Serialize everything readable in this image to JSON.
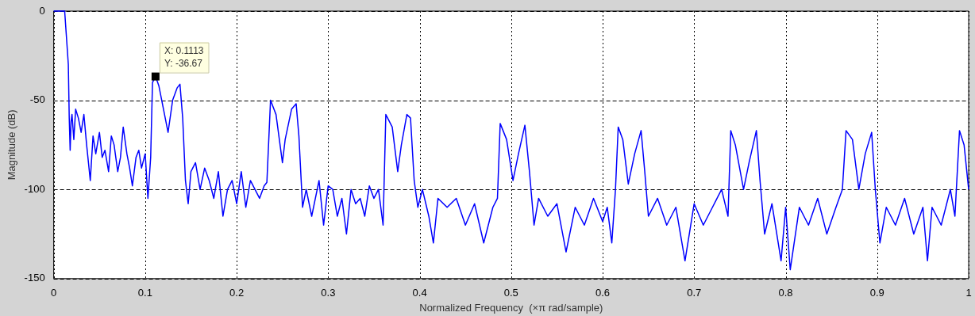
{
  "chart_data": {
    "type": "line",
    "xlabel": "Normalized Frequency  (×π rad/sample)",
    "ylabel": "Magnitude (dB)",
    "xlim": [
      0,
      1
    ],
    "ylim": [
      -150,
      0
    ],
    "xticks": [
      0,
      0.1,
      0.2,
      0.3,
      0.4,
      0.5,
      0.6,
      0.7,
      0.8,
      0.9,
      1
    ],
    "yticks": [
      -150,
      -100,
      -50,
      0
    ],
    "grid": true,
    "marker": "none",
    "line_style": "solid",
    "x": [
      0,
      0.012,
      0.016,
      0.017,
      0.018,
      0.019,
      0.02,
      0.022,
      0.024,
      0.027,
      0.03,
      0.033,
      0.036,
      0.04,
      0.043,
      0.046,
      0.05,
      0.053,
      0.056,
      0.06,
      0.063,
      0.066,
      0.07,
      0.073,
      0.076,
      0.08,
      0.083,
      0.086,
      0.09,
      0.093,
      0.096,
      0.1,
      0.103,
      0.106,
      0.108,
      0.1113,
      0.115,
      0.12,
      0.125,
      0.13,
      0.135,
      0.138,
      0.141,
      0.144,
      0.147,
      0.15,
      0.155,
      0.16,
      0.165,
      0.17,
      0.175,
      0.18,
      0.185,
      0.19,
      0.195,
      0.2,
      0.205,
      0.21,
      0.215,
      0.22,
      0.225,
      0.23,
      0.233,
      0.237,
      0.243,
      0.25,
      0.253,
      0.26,
      0.265,
      0.268,
      0.272,
      0.276,
      0.282,
      0.29,
      0.295,
      0.3,
      0.305,
      0.31,
      0.315,
      0.32,
      0.325,
      0.33,
      0.335,
      0.34,
      0.345,
      0.35,
      0.355,
      0.36,
      0.363,
      0.37,
      0.376,
      0.38,
      0.386,
      0.39,
      0.394,
      0.398,
      0.403,
      0.41,
      0.415,
      0.42,
      0.43,
      0.44,
      0.45,
      0.46,
      0.47,
      0.48,
      0.485,
      0.488,
      0.495,
      0.502,
      0.508,
      0.515,
      0.52,
      0.525,
      0.53,
      0.54,
      0.55,
      0.56,
      0.57,
      0.58,
      0.59,
      0.6,
      0.605,
      0.61,
      0.614,
      0.617,
      0.622,
      0.628,
      0.635,
      0.642,
      0.646,
      0.65,
      0.66,
      0.67,
      0.68,
      0.69,
      0.7,
      0.71,
      0.72,
      0.73,
      0.737,
      0.74,
      0.745,
      0.754,
      0.76,
      0.768,
      0.772,
      0.777,
      0.785,
      0.795,
      0.8,
      0.805,
      0.815,
      0.825,
      0.835,
      0.845,
      0.855,
      0.862,
      0.866,
      0.873,
      0.88,
      0.887,
      0.894,
      0.898,
      0.903,
      0.91,
      0.92,
      0.93,
      0.94,
      0.95,
      0.955,
      0.96,
      0.97,
      0.98,
      0.985,
      0.99,
      0.995,
      1
    ],
    "series": [
      {
        "color": "#0000ff",
        "values": [
          0,
          0,
          -30,
          -60,
          -78,
          -62,
          -58,
          -72,
          -55,
          -60,
          -68,
          -58,
          -75,
          -95,
          -70,
          -80,
          -68,
          -82,
          -78,
          -90,
          -70,
          -75,
          -90,
          -82,
          -65,
          -80,
          -88,
          -98,
          -82,
          -78,
          -88,
          -80,
          -105,
          -82,
          -40,
          -36.67,
          -42,
          -55,
          -68,
          -50,
          -43,
          -41,
          -60,
          -95,
          -108,
          -90,
          -85,
          -100,
          -88,
          -95,
          -105,
          -90,
          -115,
          -100,
          -95,
          -108,
          -90,
          -110,
          -95,
          -100,
          -105,
          -98,
          -96,
          -50,
          -58,
          -85,
          -72,
          -55,
          -52,
          -70,
          -110,
          -100,
          -115,
          -95,
          -120,
          -98,
          -100,
          -115,
          -105,
          -125,
          -100,
          -108,
          -105,
          -115,
          -98,
          -105,
          -100,
          -120,
          -58,
          -65,
          -90,
          -75,
          -58,
          -60,
          -95,
          -110,
          -100,
          -115,
          -130,
          -105,
          -110,
          -105,
          -120,
          -108,
          -130,
          -110,
          -105,
          -63,
          -72,
          -95,
          -80,
          -64,
          -90,
          -120,
          -105,
          -115,
          -108,
          -135,
          -110,
          -120,
          -105,
          -118,
          -110,
          -130,
          -100,
          -65,
          -72,
          -97,
          -80,
          -67,
          -90,
          -115,
          -105,
          -120,
          -110,
          -140,
          -108,
          -120,
          -110,
          -100,
          -115,
          -67,
          -75,
          -100,
          -85,
          -67,
          -95,
          -125,
          -108,
          -140,
          -110,
          -145,
          -110,
          -120,
          -105,
          -125,
          -110,
          -100,
          -67,
          -72,
          -100,
          -80,
          -68,
          -100,
          -130,
          -110,
          -120,
          -105,
          -125,
          -110,
          -140,
          -110,
          -120,
          -100,
          -115,
          -67,
          -75,
          -100
        ]
      }
    ],
    "annotations": [
      {
        "text": "X: 0.1113\nY: -36.67",
        "x": 0.1113,
        "y": -36.67
      }
    ]
  }
}
